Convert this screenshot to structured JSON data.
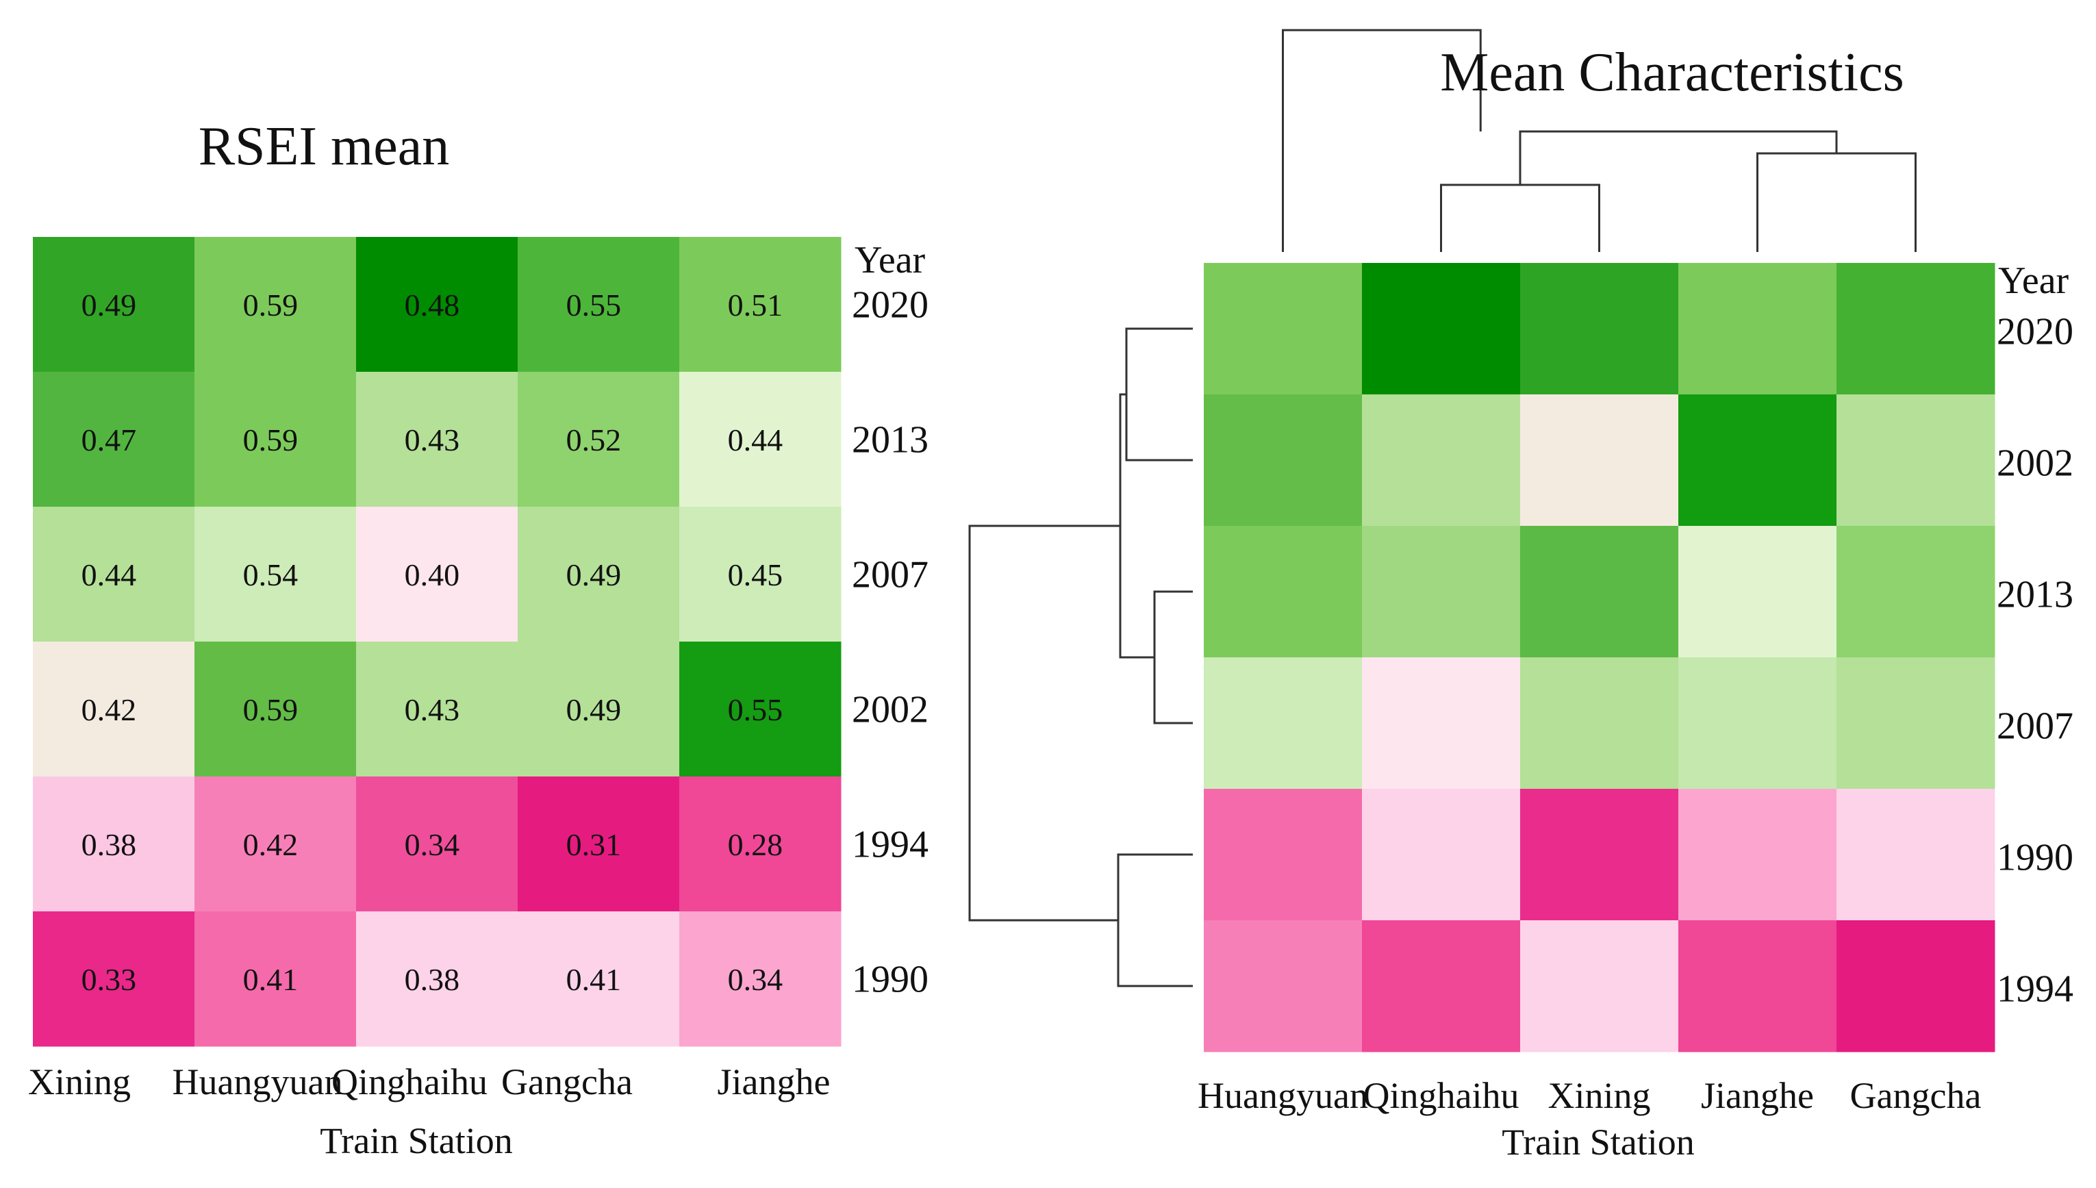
{
  "chart_data": [
    {
      "type": "heatmap",
      "title": "RSEI mean",
      "xlabel": "Train Station",
      "ylabel_header": "Year",
      "columns": [
        "Xining",
        "Huangyuan",
        "Qinghaihu",
        "Gangcha",
        "Jianghe"
      ],
      "rows": [
        "2020",
        "2013",
        "2007",
        "2002",
        "1994",
        "1990"
      ],
      "values": [
        [
          0.49,
          0.59,
          0.48,
          0.55,
          0.51
        ],
        [
          0.47,
          0.59,
          0.43,
          0.52,
          0.44
        ],
        [
          0.44,
          0.54,
          0.4,
          0.49,
          0.45
        ],
        [
          0.42,
          0.59,
          0.43,
          0.49,
          0.55
        ],
        [
          0.38,
          0.42,
          0.34,
          0.31,
          0.28
        ],
        [
          0.33,
          0.41,
          0.38,
          0.41,
          0.34
        ]
      ],
      "value_labels": [
        [
          "0.49",
          "0.59",
          "0.48",
          "0.55",
          "0.51"
        ],
        [
          "0.47",
          "0.59",
          "0.43",
          "0.52",
          "0.44"
        ],
        [
          "0.44",
          "0.54",
          "0.40",
          "0.49",
          "0.45"
        ],
        [
          "0.42",
          "0.59",
          "0.43",
          "0.49",
          "0.55"
        ],
        [
          "0.38",
          "0.42",
          "0.34",
          "0.31",
          "0.28"
        ],
        [
          "0.33",
          "0.41",
          "0.38",
          "0.41",
          "0.34"
        ]
      ],
      "cell_colors": [
        [
          "#31a525",
          "#7ccb5a",
          "#008c00",
          "#4db63a",
          "#7ccb5a"
        ],
        [
          "#52b540",
          "#7ccb5a",
          "#b4e098",
          "#8ed36e",
          "#e2f4cf"
        ],
        [
          "#b4e098",
          "#cdecb8",
          "#fde6ee",
          "#b4e098",
          "#cdecb8"
        ],
        [
          "#f3ebe0",
          "#62bc46",
          "#b4e098",
          "#b4e098",
          "#149c12"
        ],
        [
          "#fcc7e3",
          "#f77fb8",
          "#ef4e9b",
          "#e61b80",
          "#f04797"
        ],
        [
          "#e9288a",
          "#f56aab",
          "#fdd3e9",
          "#fdd3e9",
          "#fba5cf"
        ]
      ]
    },
    {
      "type": "heatmap",
      "title": "Mean Characteristics",
      "xlabel": "Train Station",
      "ylabel_header": "Year",
      "columns": [
        "Huangyuan",
        "Qinghaihu",
        "Xining",
        "Jianghe",
        "Gangcha"
      ],
      "rows": [
        "2020",
        "2002",
        "2013",
        "2007",
        "1990",
        "1994"
      ],
      "cell_colors": [
        [
          "#7ccb5a",
          "#008c00",
          "#2ea424",
          "#7ccb5a",
          "#44b132"
        ],
        [
          "#64bd48",
          "#b4e098",
          "#f3ebe0",
          "#129c10",
          "#b4e098"
        ],
        [
          "#7ccb5a",
          "#a0d882",
          "#5bb945",
          "#e2f4cf",
          "#8ed36e"
        ],
        [
          "#cdecb8",
          "#fde6ee",
          "#b4e098",
          "#c4e8ad",
          "#b4e098"
        ],
        [
          "#f56aab",
          "#fdd3e9",
          "#ea2c8c",
          "#fba5cf",
          "#fdd3e9"
        ],
        [
          "#f77fb8",
          "#f04797",
          "#fdd3e9",
          "#f04797",
          "#e61b80"
        ]
      ],
      "column_dendrogram": "((Huangyuan), ((Qinghaihu, Xining), (Jianghe, Gangcha)))",
      "row_dendrogram": "(((2020, 2002), (2013, 2007)), (1990, 1994))"
    }
  ]
}
